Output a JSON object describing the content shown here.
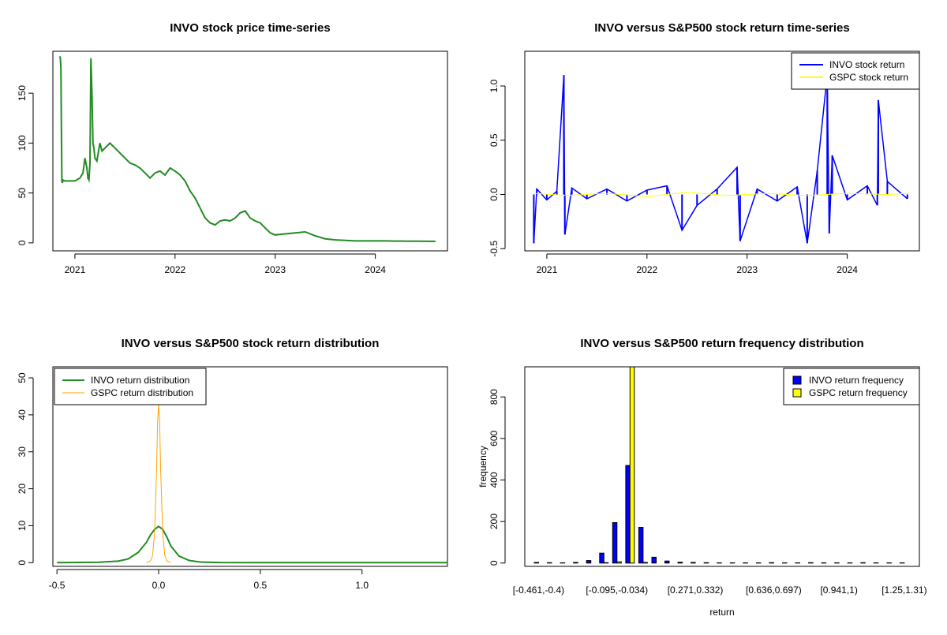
{
  "chart_data": [
    {
      "type": "line",
      "title": "INVO stock price time-series",
      "xlabel": "",
      "ylabel": "",
      "x_ticks": [
        "2021",
        "2022",
        "2023",
        "2024"
      ],
      "y_ticks": [
        0,
        50,
        100,
        150
      ],
      "xlim": [
        2020.78,
        2024.72
      ],
      "ylim": [
        -8,
        192
      ],
      "color": "#228B22",
      "series": [
        {
          "x": [
            2020.85,
            2020.855,
            2020.86,
            2020.865,
            2020.87,
            2020.875,
            2020.88,
            2020.9,
            2020.95,
            2021.0,
            2021.05,
            2021.08,
            2021.1,
            2021.12,
            2021.13,
            2021.14,
            2021.15,
            2021.16,
            2021.17,
            2021.18,
            2021.19,
            2021.2,
            2021.22,
            2021.25,
            2021.27,
            2021.3,
            2021.35,
            2021.4,
            2021.45,
            2021.5,
            2021.55,
            2021.6,
            2021.65,
            2021.7,
            2021.75,
            2021.8,
            2021.85,
            2021.9,
            2021.95,
            2022.0,
            2022.05,
            2022.1,
            2022.15,
            2022.2,
            2022.25,
            2022.3,
            2022.35,
            2022.4,
            2022.45,
            2022.5,
            2022.55,
            2022.6,
            2022.65,
            2022.7,
            2022.75,
            2022.8,
            2022.85,
            2022.9,
            2022.95,
            2023.0,
            2023.1,
            2023.2,
            2023.3,
            2023.4,
            2023.5,
            2023.6,
            2023.7,
            2023.8,
            2023.9,
            2024.0,
            2024.1,
            2024.2,
            2024.3,
            2024.4,
            2024.5,
            2024.6
          ],
          "y": [
            187,
            185,
            175,
            115,
            62,
            60,
            63,
            62,
            62,
            62,
            65,
            70,
            85,
            75,
            65,
            63,
            80,
            185,
            150,
            100,
            95,
            85,
            82,
            100,
            92,
            95,
            100,
            95,
            90,
            85,
            80,
            78,
            75,
            70,
            65,
            70,
            72,
            68,
            75,
            72,
            68,
            62,
            52,
            45,
            35,
            25,
            20,
            18,
            22,
            23,
            22,
            25,
            30,
            32,
            25,
            22,
            20,
            15,
            10,
            8,
            9,
            10,
            11,
            7,
            4,
            3,
            2.5,
            2,
            2,
            2,
            2,
            1.8,
            1.7,
            1.7,
            1.6,
            1.5
          ]
        }
      ]
    },
    {
      "type": "line",
      "title": "INVO versus S&P500 stock return time-series",
      "xlabel": "",
      "ylabel": "",
      "x_ticks": [
        "2021",
        "2022",
        "2023",
        "2024"
      ],
      "y_ticks": [
        -0.5,
        0.0,
        0.5,
        1.0
      ],
      "xlim": [
        2020.78,
        2024.72
      ],
      "ylim": [
        -0.52,
        1.32
      ],
      "legend": "top-right",
      "series": [
        {
          "name": "INVO stock return",
          "color": "#0000FF",
          "x": [
            2020.87,
            2020.9,
            2021.0,
            2021.1,
            2021.17,
            2021.18,
            2021.25,
            2021.4,
            2021.6,
            2021.8,
            2022.0,
            2022.2,
            2022.35,
            2022.5,
            2022.7,
            2022.9,
            2022.93,
            2023.1,
            2023.3,
            2023.5,
            2023.6,
            2023.7,
            2023.8,
            2023.82,
            2023.85,
            2024.0,
            2024.2,
            2024.3,
            2024.31,
            2024.4,
            2024.6
          ],
          "y": [
            -0.45,
            0.05,
            -0.05,
            0.03,
            1.1,
            -0.37,
            0.06,
            -0.04,
            0.05,
            -0.06,
            0.04,
            0.08,
            -0.33,
            -0.1,
            0.05,
            0.25,
            -0.43,
            0.05,
            -0.06,
            0.07,
            -0.45,
            0.22,
            1.1,
            -0.36,
            0.36,
            -0.05,
            0.08,
            -0.1,
            0.87,
            0.12,
            -0.04
          ]
        },
        {
          "name": "GSPC stock return",
          "color": "#FFFF00",
          "x": [
            2020.87,
            2021.2,
            2021.6,
            2022.0,
            2022.4,
            2022.8,
            2023.2,
            2023.6,
            2024.0,
            2024.4,
            2024.62
          ],
          "y": [
            0.01,
            -0.01,
            0.01,
            -0.02,
            0.02,
            -0.01,
            0.01,
            -0.01,
            0.01,
            0.0,
            0.01
          ]
        }
      ]
    },
    {
      "type": "line",
      "title": "INVO versus S&P500 stock return distribution",
      "xlabel": "",
      "ylabel": "",
      "x_ticks": [
        -0.5,
        0.0,
        0.5,
        1.0
      ],
      "y_ticks": [
        0,
        10,
        20,
        30,
        40,
        50
      ],
      "xlim": [
        -0.52,
        1.42
      ],
      "ylim": [
        -1,
        53
      ],
      "legend": "top-left",
      "series": [
        {
          "name": "INVO return distribution",
          "color": "#228B22",
          "x": [
            -0.5,
            -0.3,
            -0.2,
            -0.15,
            -0.1,
            -0.06,
            -0.04,
            -0.02,
            0.0,
            0.02,
            0.04,
            0.06,
            0.1,
            0.15,
            0.2,
            0.3,
            0.5,
            1.0,
            1.42
          ],
          "y": [
            0,
            0.1,
            0.4,
            1,
            2.8,
            5.5,
            7.5,
            9,
            9.8,
            9,
            7,
            4.5,
            1.8,
            0.6,
            0.2,
            0.05,
            0.02,
            0.02,
            0
          ]
        },
        {
          "name": "GSPC return distribution",
          "color": "#FFA500",
          "x": [
            -0.06,
            -0.04,
            -0.03,
            -0.02,
            -0.01,
            -0.005,
            0.0,
            0.005,
            0.01,
            0.02,
            0.03,
            0.04,
            0.06
          ],
          "y": [
            0,
            0.5,
            2,
            8,
            25,
            38,
            43,
            38,
            25,
            8,
            2,
            0.5,
            0
          ]
        }
      ]
    },
    {
      "type": "bar",
      "title": "INVO versus S&P500 return frequency distribution",
      "xlabel": "return",
      "ylabel": "frequency",
      "y_ticks": [
        0,
        200,
        400,
        600,
        800
      ],
      "ylim": [
        -16,
        945
      ],
      "category_ticks": [
        "[-0.461,-0.4)",
        "[-0.095,-0.034)",
        "[0.271,0.332)",
        "[0.636,0.697)",
        "[0.941,1)",
        "[1.25,1.31)"
      ],
      "category_tick_index": [
        0,
        6,
        12,
        18,
        23,
        28
      ],
      "categories": [
        "[-0.461,-0.4)",
        "[-0.4,-0.339)",
        "[-0.339,-0.278)",
        "[-0.278,-0.217)",
        "[-0.217,-0.156)",
        "[-0.156,-0.095)",
        "[-0.095,-0.034)",
        "[-0.034,0.027)",
        "[0.027,0.088)",
        "[0.088,0.149)",
        "[0.149,0.21)",
        "[0.21,0.271)",
        "[0.271,0.332)",
        "[0.332,0.393)",
        "[0.393,0.454)",
        "[0.454,0.515)",
        "[0.515,0.576)",
        "[0.576,0.636)",
        "[0.636,0.697)",
        "[0.697,0.758)",
        "[0.758,0.819)",
        "[0.819,0.88)",
        "[0.88,0.941)",
        "[0.941,1)",
        "[1,1.06)",
        "[1.06,1.13)",
        "[1.13,1.19)",
        "[1.19,1.25)",
        "[1.25,1.31)"
      ],
      "legend": "top-right",
      "series": [
        {
          "name": "INVO return frequency",
          "color": "#0000FF",
          "values": [
            3,
            2,
            1,
            3,
            12,
            48,
            195,
            470,
            172,
            28,
            10,
            4,
            3,
            2,
            1,
            1,
            1,
            1,
            2,
            1,
            1,
            2,
            1,
            1,
            1,
            2,
            1,
            1,
            1
          ]
        },
        {
          "name": "GSPC return frequency",
          "color": "#FFFF00",
          "values": [
            0,
            0,
            0,
            0,
            0,
            2,
            6,
            945,
            3,
            0,
            0,
            0,
            0,
            0,
            0,
            0,
            0,
            0,
            0,
            0,
            0,
            0,
            0,
            0,
            0,
            0,
            0,
            0,
            0
          ]
        }
      ]
    }
  ]
}
